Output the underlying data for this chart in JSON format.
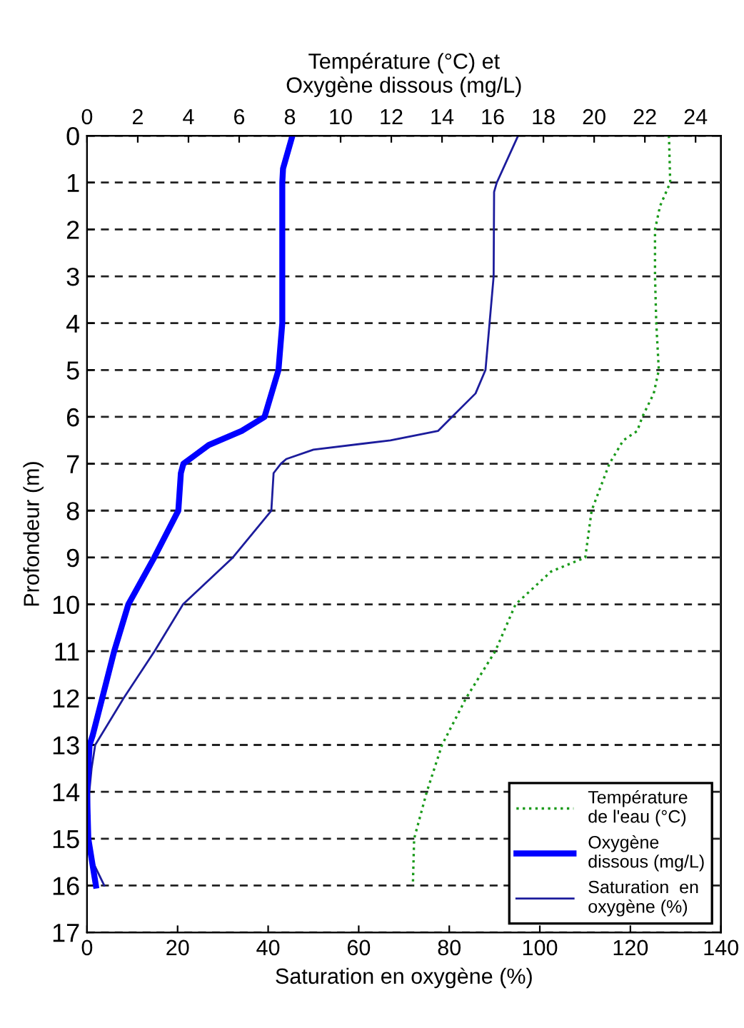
{
  "chart_data": {
    "type": "line",
    "xlabel": "Saturation en oxygène (%)",
    "x2label": "Température (°C) et\nOxygène dissous (mg/L)",
    "ylabel": "Profondeur (m)",
    "xlim": [
      0,
      140
    ],
    "xticks": [
      0,
      20,
      40,
      60,
      80,
      100,
      120,
      140
    ],
    "x2lim": [
      0,
      25
    ],
    "x2ticks": [
      0,
      2,
      4,
      6,
      8,
      10,
      12,
      14,
      16,
      18,
      20,
      22,
      24
    ],
    "ylim": [
      17,
      0
    ],
    "yticks": [
      0,
      1,
      2,
      3,
      4,
      5,
      6,
      7,
      8,
      9,
      10,
      11,
      12,
      13,
      14,
      15,
      16,
      17
    ],
    "grid": "y",
    "legend": "bottom right",
    "series": [
      {
        "name": "Température\nde l'eau (°C)",
        "color": "#1a9a1a",
        "axis": "x2",
        "line_style": "dotted",
        "x": [
          22.95,
          23.0,
          22.6,
          22.4,
          22.4,
          22.45,
          22.55,
          22.35,
          21.9,
          21.7,
          21.15,
          20.6,
          19.9,
          19.65,
          18.3,
          16.9,
          16.1,
          14.95,
          14.0,
          13.4,
          12.9,
          12.85
        ],
        "values": [
          0,
          1,
          1.5,
          2,
          3,
          4,
          5,
          5.5,
          6,
          6.3,
          6.5,
          7,
          8,
          9,
          9.3,
          10,
          11,
          12,
          13,
          14,
          15,
          16
        ]
      },
      {
        "name": "Oxygène\ndissous (mg/L)",
        "color": "#0000ff",
        "axis": "x2",
        "line_style": "solid",
        "x": [
          8.1,
          7.73,
          7.7,
          7.7,
          7.55,
          7.0,
          6.1,
          4.8,
          4.3,
          3.8,
          3.7,
          3.6,
          2.65,
          1.63,
          1.07,
          0.6,
          0.22,
          0.1,
          0,
          0.05,
          0.2,
          0.35
        ],
        "values": [
          0,
          0.7,
          1,
          4,
          5,
          6,
          6.3,
          6.6,
          6.8,
          7,
          7.2,
          8,
          9,
          10,
          11,
          12,
          12.8,
          13,
          14,
          15,
          15.5,
          16
        ]
      },
      {
        "name": "Saturation  en\noxygène (%)",
        "color": "#1c1c9c",
        "line_style": "solid",
        "x": [
          95.2,
          90.5,
          89.9,
          89.8,
          88.9,
          88.0,
          85.8,
          80.6,
          77.5,
          67,
          50,
          44,
          42.8,
          41.2,
          40.7,
          32.2,
          21.2,
          14.9,
          8.1,
          1.8,
          1.0,
          0.5,
          0.3,
          1.3,
          3.8
        ],
        "values": [
          0,
          1,
          1.2,
          3,
          4,
          5,
          5.5,
          6,
          6.3,
          6.5,
          6.7,
          6.9,
          7,
          7.2,
          8,
          9,
          10,
          11,
          12,
          13,
          13.5,
          14,
          15,
          15.5,
          16
        ]
      }
    ]
  }
}
